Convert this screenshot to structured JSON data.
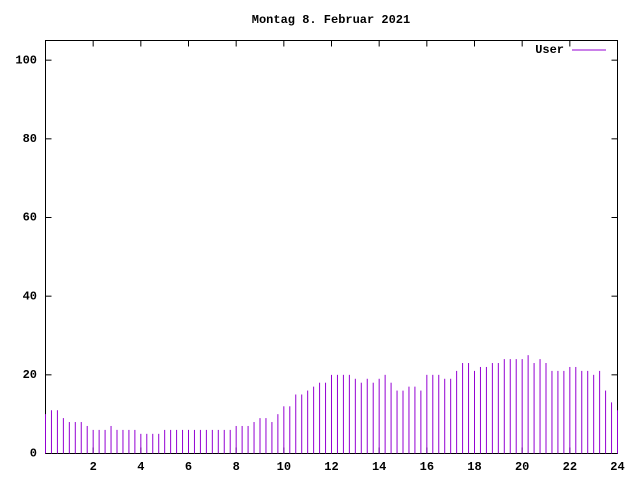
{
  "chart_data": {
    "type": "impulses",
    "title": "Montag 8. Februar 2021",
    "series": [
      {
        "name": "User",
        "color": "#9400d3",
        "x": [
          0,
          0.25,
          0.5,
          0.75,
          1,
          1.25,
          1.5,
          1.75,
          2,
          2.25,
          2.5,
          2.75,
          3,
          3.25,
          3.5,
          3.75,
          4,
          4.25,
          4.5,
          4.75,
          5,
          5.25,
          5.5,
          5.75,
          6,
          6.25,
          6.5,
          6.75,
          7,
          7.25,
          7.5,
          7.75,
          8,
          8.25,
          8.5,
          8.75,
          9,
          9.25,
          9.5,
          9.75,
          10,
          10.25,
          10.5,
          10.75,
          11,
          11.25,
          11.5,
          11.75,
          12,
          12.25,
          12.5,
          12.75,
          13,
          13.25,
          13.5,
          13.75,
          14,
          14.25,
          14.5,
          14.75,
          15,
          15.25,
          15.5,
          15.75,
          16,
          16.25,
          16.5,
          16.75,
          17,
          17.25,
          17.5,
          17.75,
          18,
          18.25,
          18.5,
          18.75,
          19,
          19.25,
          19.5,
          19.75,
          20,
          20.25,
          20.5,
          20.75,
          21,
          21.25,
          21.5,
          21.75,
          22,
          22.25,
          22.5,
          22.75,
          23,
          23.25,
          23.5,
          23.75,
          24
        ],
        "values": [
          10,
          11,
          11,
          9,
          8,
          8,
          8,
          7,
          6,
          6,
          6,
          7,
          6,
          6,
          6,
          6,
          5,
          5,
          5,
          5,
          6,
          6,
          6,
          6,
          6,
          6,
          6,
          6,
          6,
          6,
          6,
          6,
          7,
          7,
          7,
          8,
          9,
          9,
          8,
          10,
          12,
          12,
          15,
          15,
          16,
          17,
          18,
          18,
          20,
          20,
          20,
          20,
          19,
          18,
          19,
          18,
          19,
          20,
          18,
          16,
          16,
          17,
          17,
          16,
          20,
          20,
          20,
          19,
          19,
          21,
          23,
          23,
          21,
          22,
          22,
          23,
          23,
          24,
          24,
          24,
          24,
          25,
          23,
          24,
          23,
          21,
          21,
          21,
          22,
          22,
          21,
          21,
          20,
          21,
          16,
          13,
          11
        ]
      }
    ],
    "xlim": [
      0,
      24
    ],
    "xticks": [
      2,
      4,
      6,
      8,
      10,
      12,
      14,
      16,
      18,
      20,
      22,
      24
    ],
    "ylim": [
      0,
      105
    ],
    "yticks": [
      0,
      20,
      40,
      60,
      80,
      100
    ],
    "legend": "upper right"
  }
}
